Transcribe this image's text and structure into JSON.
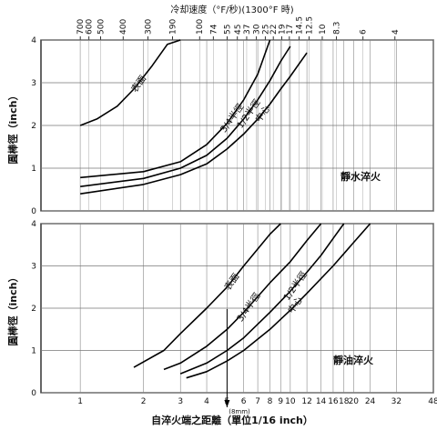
{
  "top_axis": {
    "title": "冷却速度（°F/秒)(1300°F 時)",
    "ticks": [
      {
        "label": "700",
        "x": 1.0
      },
      {
        "label": "600",
        "x": 1.1
      },
      {
        "label": "500",
        "x": 1.25
      },
      {
        "label": "400",
        "x": 1.6
      },
      {
        "label": "300",
        "x": 2.1
      },
      {
        "label": "190",
        "x": 2.75
      },
      {
        "label": "100",
        "x": 3.7
      },
      {
        "label": "74",
        "x": 4.3
      },
      {
        "label": "55",
        "x": 5.0
      },
      {
        "label": "45",
        "x": 5.6
      },
      {
        "label": "37",
        "x": 6.2
      },
      {
        "label": "30",
        "x": 6.9
      },
      {
        "label": "25",
        "x": 7.6
      },
      {
        "label": "22",
        "x": 8.3
      },
      {
        "label": "19",
        "x": 9.1
      },
      {
        "label": "17",
        "x": 9.9
      },
      {
        "label": "14.5",
        "x": 11.0
      },
      {
        "label": "12.5",
        "x": 12.3
      },
      {
        "label": "10",
        "x": 14.2
      },
      {
        "label": "8.3",
        "x": 16.6
      },
      {
        "label": "6",
        "x": 22.2
      },
      {
        "label": "4",
        "x": 31.5
      }
    ]
  },
  "bottom_axis": {
    "title": "自淬火端之距離（單位1/16 inch）",
    "marker_label": "(8mm)",
    "marker_x": 5,
    "ticks": [
      "1",
      "2",
      "3",
      "4",
      "5",
      "6",
      "7",
      "8",
      "9",
      "10",
      "12",
      "14",
      "16",
      "18",
      "20",
      "24",
      "32",
      "48"
    ],
    "tick_values": [
      1,
      2,
      3,
      4,
      5,
      6,
      7,
      8,
      9,
      10,
      12,
      14,
      16,
      18,
      20,
      24,
      32,
      48
    ],
    "x_range": [
      0.65,
      48
    ]
  },
  "chart_data": [
    {
      "type": "line",
      "title": "靜水淬火",
      "ylabel": "圓棒徑（inch）",
      "xlabel": "",
      "xscale": "log",
      "xlim": [
        0.65,
        48
      ],
      "ylim": [
        0,
        4
      ],
      "yticks": [
        "0",
        "1",
        "2",
        "3",
        "4"
      ],
      "series": [
        {
          "name": "表面",
          "x": [
            1,
            1.2,
            1.5,
            1.8,
            2.2,
            2.6,
            3.0
          ],
          "y": [
            2.0,
            2.15,
            2.45,
            2.85,
            3.4,
            3.9,
            4.0
          ]
        },
        {
          "name": "3/4半徑",
          "x": [
            1,
            2,
            3,
            4,
            5,
            6,
            7,
            8
          ],
          "y": [
            0.78,
            0.92,
            1.15,
            1.55,
            2.05,
            2.6,
            3.2,
            4.0
          ]
        },
        {
          "name": "1/2半徑",
          "x": [
            1,
            2,
            3,
            4,
            5,
            6,
            7,
            8,
            9,
            10
          ],
          "y": [
            0.57,
            0.76,
            1.0,
            1.3,
            1.7,
            2.15,
            2.6,
            3.05,
            3.5,
            3.85
          ]
        },
        {
          "name": "中心",
          "x": [
            1,
            2,
            3,
            4,
            5,
            6,
            7,
            8,
            9,
            10,
            12
          ],
          "y": [
            0.4,
            0.62,
            0.85,
            1.1,
            1.45,
            1.8,
            2.15,
            2.5,
            2.85,
            3.15,
            3.7
          ]
        }
      ]
    },
    {
      "type": "line",
      "title": "靜油淬火",
      "ylabel": "圓棒徑（inch）",
      "xlabel": "自淬火端之距離（單位1/16 inch）",
      "xscale": "log",
      "xlim": [
        0.65,
        48
      ],
      "ylim": [
        0,
        4
      ],
      "yticks": [
        "0",
        "1",
        "2",
        "3",
        "4"
      ],
      "series": [
        {
          "name": "表面",
          "x": [
            1.8,
            2.5,
            3,
            4,
            5,
            6,
            7,
            8,
            9
          ],
          "y": [
            0.6,
            1.0,
            1.4,
            2.0,
            2.5,
            3.0,
            3.4,
            3.75,
            4.0
          ]
        },
        {
          "name": "3/4半徑",
          "x": [
            2.5,
            3,
            4,
            5,
            6,
            8,
            10,
            12,
            14
          ],
          "y": [
            0.55,
            0.7,
            1.1,
            1.5,
            1.9,
            2.6,
            3.1,
            3.6,
            4.0
          ]
        },
        {
          "name": "1/2半徑",
          "x": [
            3,
            4,
            5,
            6,
            8,
            10,
            12,
            14,
            16,
            18
          ],
          "y": [
            0.45,
            0.7,
            1.0,
            1.3,
            1.9,
            2.4,
            2.85,
            3.25,
            3.65,
            4.0
          ]
        },
        {
          "name": "中心",
          "x": [
            3.2,
            4,
            5,
            6,
            8,
            10,
            12,
            16,
            20,
            24
          ],
          "y": [
            0.35,
            0.5,
            0.75,
            1.0,
            1.5,
            1.95,
            2.35,
            3.0,
            3.55,
            4.0
          ]
        }
      ]
    }
  ]
}
